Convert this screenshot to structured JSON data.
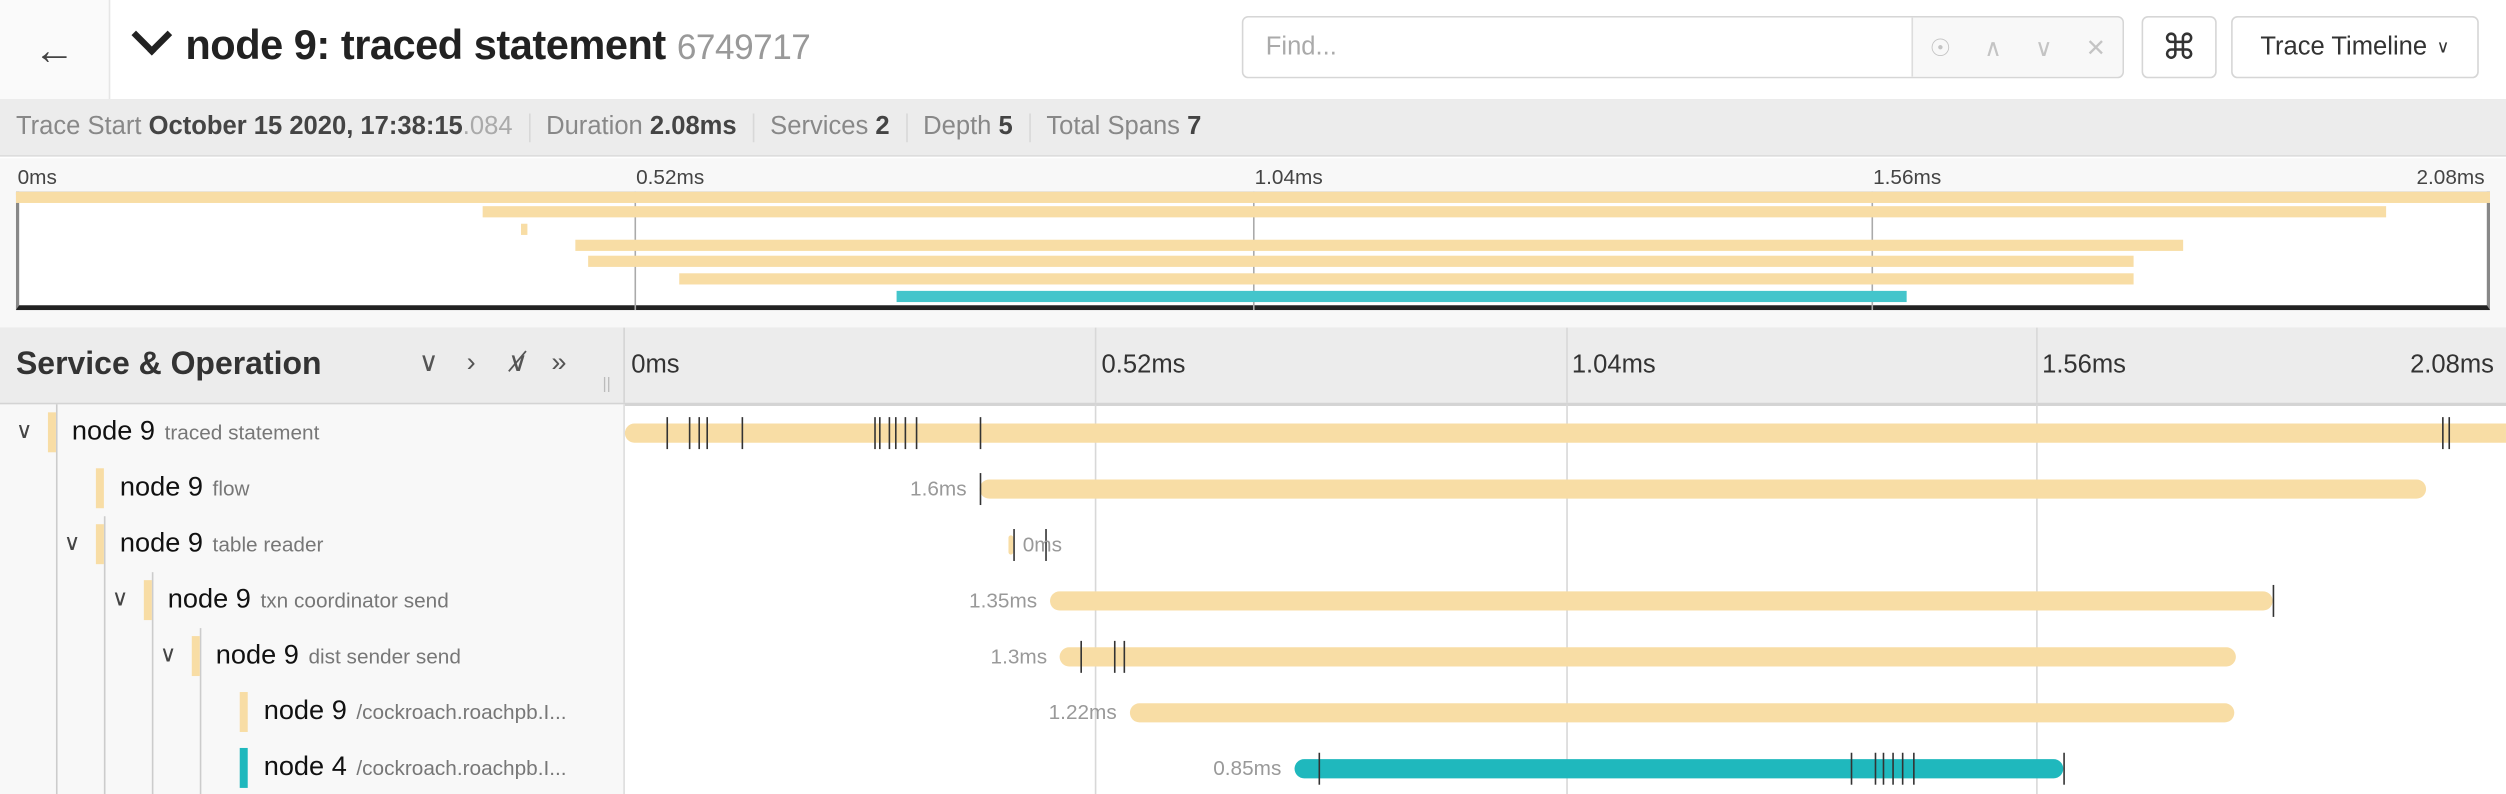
{
  "header": {
    "back_icon": "arrow-left-icon",
    "title": "node 9: traced statement",
    "trace_id": "6749717",
    "find_placeholder": "Find...",
    "find_value": "",
    "find_icons": [
      "locate-icon",
      "chevron-up-icon",
      "chevron-down-icon",
      "close-icon"
    ],
    "shortcut_glyph": "⌘",
    "view_label": "Trace Timeline"
  },
  "summary": {
    "trace_start_label": "Trace Start",
    "trace_start": "October 15 2020, 17:38:15",
    "trace_start_ms": ".084",
    "duration_label": "Duration",
    "duration": "2.08ms",
    "services_label": "Services",
    "services": "2",
    "depth_label": "Depth",
    "depth": "5",
    "total_spans_label": "Total Spans",
    "total_spans": "7"
  },
  "timeline": {
    "ticks": [
      "0ms",
      "0.52ms",
      "1.04ms",
      "1.56ms",
      "2.08ms"
    ],
    "tick_values": [
      0,
      0.52,
      1.04,
      1.56,
      2.08
    ],
    "total_ms": 2.08
  },
  "columns": {
    "title": "Service & Operation"
  },
  "colors": {
    "node9": "#f8dda5",
    "node4": "#1fb8bd"
  },
  "spans": [
    {
      "service": "node 9",
      "operation": "traced statement",
      "depth": 0,
      "collapsible": true,
      "start": 0,
      "duration": 2.08,
      "duration_label": "",
      "color": "#f8dda5",
      "logs": [
        0.046,
        0.071,
        0.081,
        0.09,
        0.129,
        0.276,
        0.281,
        0.292,
        0.299,
        0.309,
        0.322,
        0.392,
        2.009,
        2.016
      ]
    },
    {
      "service": "node 9",
      "operation": "flow",
      "depth": 1,
      "collapsible": false,
      "start": 0.392,
      "duration": 1.6,
      "duration_label": "1.6ms",
      "color": "#f8dda5",
      "logs": [
        0.392
      ]
    },
    {
      "service": "node 9",
      "operation": "table reader",
      "depth": 1,
      "collapsible": true,
      "start": 0.424,
      "duration": 0.004,
      "duration_label": "0ms",
      "color": "#f8dda5",
      "logs": [
        0.429,
        0.465
      ]
    },
    {
      "service": "node 9",
      "operation": "txn coordinator send",
      "depth": 2,
      "collapsible": true,
      "start": 0.47,
      "duration": 1.352,
      "duration_label": "1.35ms",
      "color": "#f8dda5",
      "logs": [
        1.822
      ]
    },
    {
      "service": "node 9",
      "operation": "dist sender send",
      "depth": 3,
      "collapsible": true,
      "start": 0.481,
      "duration": 1.3,
      "duration_label": "1.3ms",
      "color": "#f8dda5",
      "logs": [
        0.504,
        0.541,
        0.551
      ]
    },
    {
      "service": "node 9",
      "operation": "/cockroach.roachpb.I...",
      "depth": 4,
      "collapsible": false,
      "start": 0.558,
      "duration": 1.222,
      "duration_label": "1.22ms",
      "color": "#f8dda5",
      "logs": []
    },
    {
      "service": "node 4",
      "operation": "/cockroach.roachpb.I...",
      "depth": 4,
      "collapsible": false,
      "start": 0.74,
      "duration": 0.85,
      "duration_label": "0.85ms",
      "color": "#1fb8bd",
      "logs": [
        0.767,
        1.355,
        1.382,
        1.391,
        1.401,
        1.412,
        1.424,
        1.59
      ]
    }
  ]
}
